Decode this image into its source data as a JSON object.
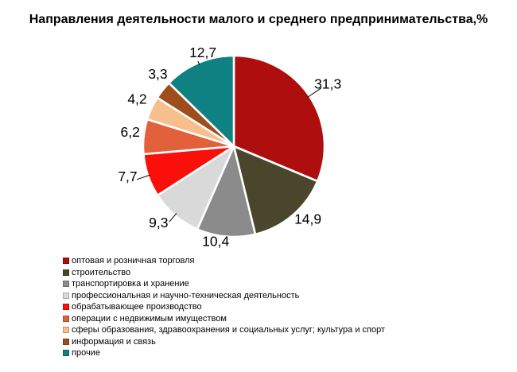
{
  "chart_data": {
    "type": "pie",
    "title": "Направления деятельности малого и среднего предпринимательства,%",
    "units": "%",
    "total": 100,
    "start_angle_deg": 0,
    "direction": "clockwise",
    "legend_position": "bottom-left",
    "background_color": "#FFFFFF",
    "slice_gap_color": "#FFFFFF",
    "label_color": "#000000",
    "slices": [
      {
        "label": "оптовая и розничная торговля",
        "value": 31.3,
        "display": "31,3",
        "color": "#AE0E0E"
      },
      {
        "label": "строительство",
        "value": 14.9,
        "display": "14,9",
        "color": "#4A462C"
      },
      {
        "label": "транспортировка и хранение",
        "value": 10.4,
        "display": "10,4",
        "color": "#8B8B8B"
      },
      {
        "label": "профессиональная и научно-техническая деятельность",
        "value": 9.3,
        "display": "9,3",
        "color": "#D9D9D9"
      },
      {
        "label": "обрабатывающее производство",
        "value": 7.7,
        "display": "7,7",
        "color": "#FB0F0B"
      },
      {
        "label": "операции с недвижимым имуществом",
        "value": 6.2,
        "display": "6,2",
        "color": "#E3613A"
      },
      {
        "label": "сферы образования, здравоохранения и социальных услуг; культура и спорт",
        "value": 4.2,
        "display": "4,2",
        "color": "#F7BF8C"
      },
      {
        "label": "информация и связь",
        "value": 3.3,
        "display": "3,3",
        "color": "#9E4E1C"
      },
      {
        "label": "прочие",
        "value": 12.7,
        "display": "12,7",
        "color": "#0F8182"
      }
    ]
  }
}
